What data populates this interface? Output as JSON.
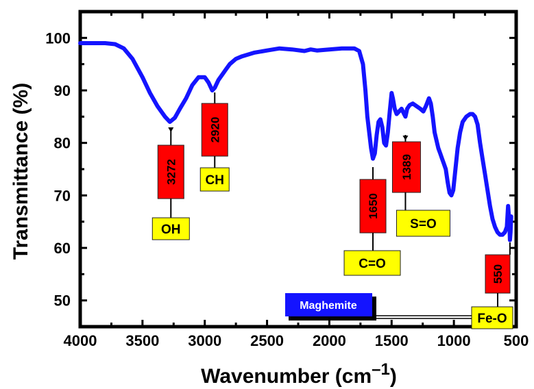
{
  "chart_data": {
    "type": "line",
    "xlabel": "Wavenumber (cm",
    "xlabel_sup": "–1",
    "xlabel_close": ")",
    "ylabel": "Transmittance (%)",
    "xlim": [
      4000,
      500
    ],
    "ylim": [
      45,
      105
    ],
    "x_ticks": [
      4000,
      3500,
      3000,
      2500,
      2000,
      1500,
      1000,
      500
    ],
    "y_ticks": [
      50,
      60,
      70,
      80,
      90,
      100
    ],
    "grid": false,
    "line_color": "#1414ff",
    "series": [
      {
        "name": "Maghemite",
        "x": [
          4000,
          3900,
          3800,
          3720,
          3650,
          3580,
          3500,
          3440,
          3380,
          3320,
          3280,
          3240,
          3200,
          3150,
          3100,
          3050,
          3000,
          2970,
          2940,
          2920,
          2890,
          2860,
          2830,
          2800,
          2750,
          2700,
          2600,
          2500,
          2400,
          2300,
          2200,
          2150,
          2100,
          2000,
          1900,
          1800,
          1760,
          1730,
          1710,
          1695,
          1680,
          1665,
          1650,
          1635,
          1620,
          1605,
          1590,
          1575,
          1560,
          1545,
          1530,
          1515,
          1500,
          1490,
          1475,
          1460,
          1440,
          1420,
          1400,
          1389,
          1375,
          1355,
          1330,
          1300,
          1270,
          1245,
          1225,
          1200,
          1185,
          1170,
          1155,
          1140,
          1125,
          1110,
          1095,
          1080,
          1065,
          1050,
          1035,
          1020,
          1005,
          990,
          970,
          950,
          930,
          900,
          870,
          850,
          830,
          810,
          790,
          770,
          750,
          730,
          710,
          690,
          670,
          650,
          630,
          610,
          590,
          575,
          565,
          555,
          550,
          545,
          540
        ],
        "y": [
          99,
          99,
          99,
          98.8,
          98,
          96,
          92.5,
          89.5,
          87,
          85,
          84,
          84.8,
          86.5,
          88.5,
          91,
          92.5,
          92.5,
          91.5,
          90,
          90.5,
          92,
          93,
          94,
          95,
          96,
          96.5,
          97.2,
          97.6,
          98,
          97.8,
          97.5,
          97.8,
          97.6,
          97.8,
          98,
          98,
          97.5,
          95,
          90,
          85,
          82,
          79,
          77,
          78,
          81.5,
          84,
          84.5,
          83,
          80,
          79.5,
          82,
          86,
          89.5,
          88.5,
          86.5,
          85.5,
          86,
          86.5,
          85.5,
          85,
          86.5,
          87.2,
          87.5,
          87,
          86.5,
          86,
          87,
          88.5,
          87.5,
          85,
          82,
          80.5,
          79,
          78,
          77,
          76,
          75,
          72.5,
          70.5,
          70,
          71,
          74.5,
          79,
          82,
          84,
          85,
          85.5,
          85.5,
          85,
          83.5,
          80,
          77,
          74,
          71,
          68,
          65.5,
          64,
          63,
          62.5,
          62.5,
          63,
          64,
          68,
          65,
          61.5,
          63,
          66
        ]
      }
    ],
    "peaks": [
      {
        "wavenumber": "3272",
        "group": "OH"
      },
      {
        "wavenumber": "2920",
        "group": "CH"
      },
      {
        "wavenumber": "1650",
        "group": "C=O"
      },
      {
        "wavenumber": "1389",
        "group": "S=O"
      },
      {
        "wavenumber": "550",
        "group": "Fe-O"
      }
    ],
    "legend_label": "Maghemite",
    "legend_placement": "bottom-right",
    "colors": {
      "peak_box": "#ff0000",
      "group_box": "#ffff00",
      "legend_box": "#1414ff",
      "legend_shadow": "#000000"
    }
  }
}
